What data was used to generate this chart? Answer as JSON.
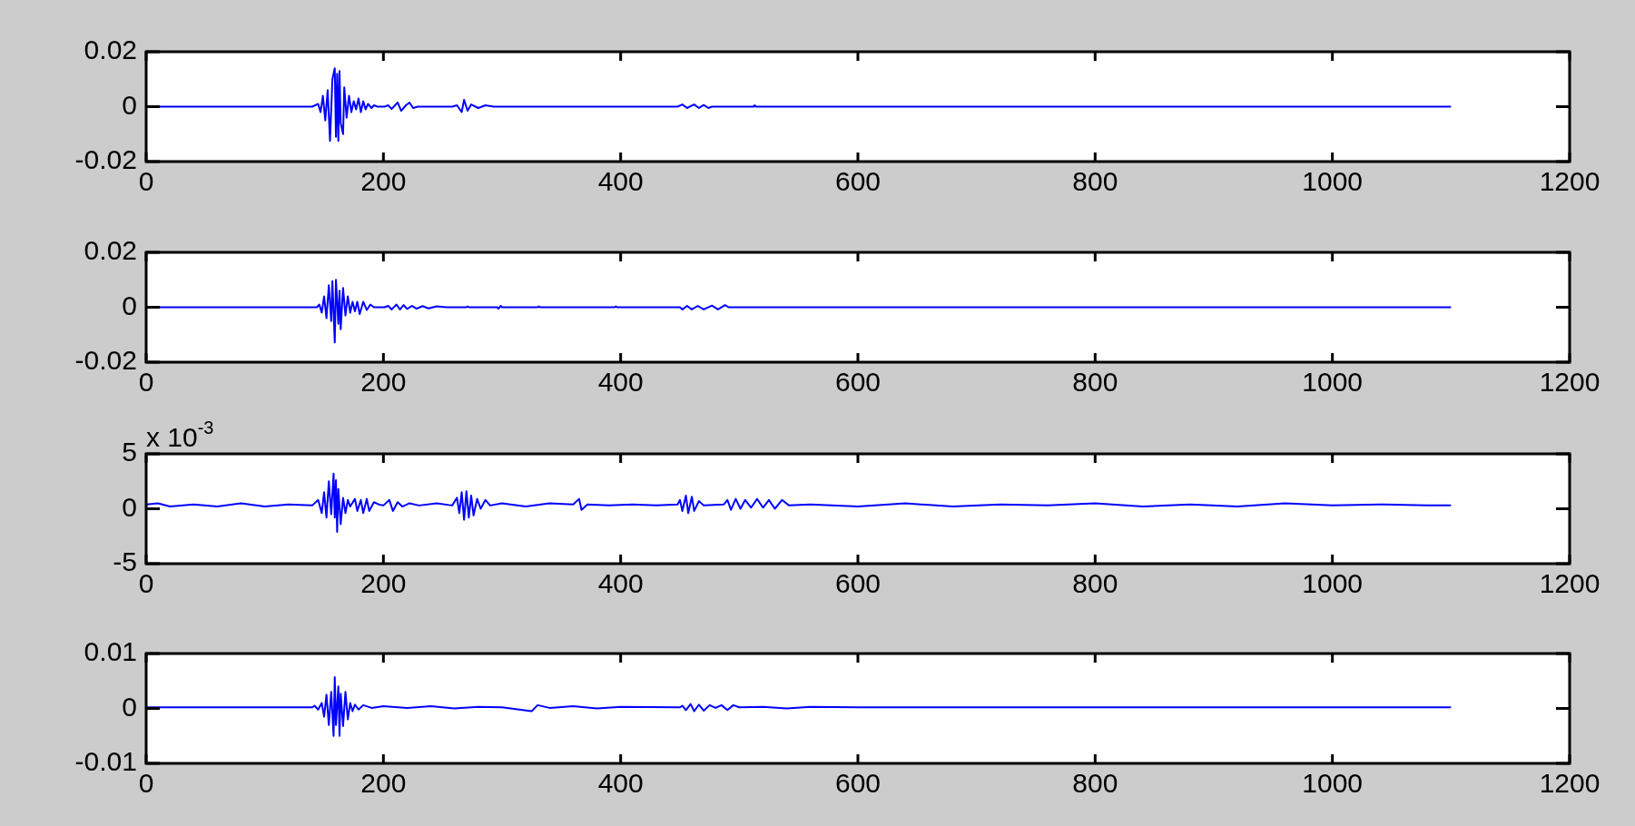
{
  "chart_data": [
    {
      "type": "line",
      "color": "#0000ff",
      "xlim": [
        0,
        1200
      ],
      "xticks": [
        0,
        200,
        400,
        600,
        800,
        1000,
        1200
      ],
      "ylim": [
        -0.02,
        0.02
      ],
      "yticks": [
        -0.02,
        0,
        0.02
      ],
      "grid": false,
      "legend": false,
      "x": [
        0,
        140,
        145,
        147,
        149,
        151,
        153,
        155,
        157,
        159,
        160,
        161,
        162,
        163,
        164,
        166,
        167,
        169,
        171,
        173,
        175,
        177,
        179,
        181,
        183,
        185,
        187,
        190,
        192,
        195,
        201,
        204,
        207,
        212,
        215,
        219,
        222,
        225,
        229,
        258,
        262,
        266,
        268,
        271,
        274,
        280,
        286,
        293,
        448,
        452,
        456,
        462,
        466,
        470,
        474,
        477,
        512,
        513,
        514,
        1100
      ],
      "values": [
        0,
        0,
        0.001,
        -0.002,
        0.004,
        -0.005,
        0.006,
        -0.0125,
        0.01,
        0.014,
        -0.011,
        0.012,
        -0.0125,
        0.013,
        -0.006,
        -0.01,
        0.007,
        -0.004,
        0.004,
        -0.002,
        0.002,
        -0.001,
        0.003,
        -0.002,
        0.002,
        -0.001,
        0.001,
        -0.0005,
        0.0005,
        0,
        0,
        0.0005,
        -0.0008,
        0.0015,
        -0.0015,
        0.0005,
        0.0015,
        -0.0005,
        0,
        0,
        0.0005,
        -0.002,
        0.0025,
        -0.0015,
        0.0008,
        -0.0005,
        0.0005,
        0,
        0,
        0.0008,
        -0.0005,
        0.0008,
        -0.0005,
        0.0006,
        -0.0005,
        0,
        0,
        0.0005,
        0,
        0
      ]
    },
    {
      "type": "line",
      "color": "#0000ff",
      "xlim": [
        0,
        1200
      ],
      "xticks": [
        0,
        200,
        400,
        600,
        800,
        1000,
        1200
      ],
      "ylim": [
        -0.02,
        0.02
      ],
      "yticks": [
        -0.02,
        0,
        0.02
      ],
      "grid": false,
      "legend": false,
      "x": [
        0,
        144,
        146,
        148,
        150,
        152,
        154,
        156,
        157,
        159,
        160,
        162,
        163,
        164,
        166,
        168,
        170,
        172,
        174,
        176,
        178,
        180,
        183,
        186,
        189,
        192,
        201,
        204,
        207,
        211,
        214,
        217,
        220,
        224,
        228,
        233,
        238,
        245,
        253,
        270,
        271,
        272,
        296,
        297,
        299,
        300,
        330,
        331,
        332,
        395,
        396,
        397,
        450,
        452,
        456,
        460,
        465,
        470,
        477,
        482,
        488,
        491,
        1100
      ],
      "values": [
        0,
        0,
        0.001,
        -0.002,
        0.004,
        -0.004,
        0.008,
        -0.005,
        0.0095,
        -0.0128,
        0.01,
        -0.006,
        0.006,
        -0.008,
        0.007,
        -0.003,
        0.004,
        -0.002,
        0.002,
        -0.0015,
        0.002,
        -0.0025,
        0.002,
        -0.001,
        0.001,
        0,
        0,
        0.0005,
        -0.0008,
        0.001,
        -0.0008,
        0.0008,
        -0.0006,
        0.0005,
        -0.0005,
        0.0004,
        -0.0004,
        0.0003,
        0,
        0,
        0.0003,
        0,
        0,
        -0.0005,
        0.0005,
        0,
        0,
        0.0003,
        0,
        0,
        0.0003,
        0,
        0,
        -0.0008,
        0.0005,
        -0.0008,
        0.0005,
        -0.0008,
        0.0006,
        -0.0008,
        0.0008,
        0,
        0
      ]
    },
    {
      "type": "line",
      "color": "#0000ff",
      "xlim": [
        0,
        1200
      ],
      "xticks": [
        0,
        200,
        400,
        600,
        800,
        1000,
        1200
      ],
      "ylim": [
        -5,
        5
      ],
      "yticks": [
        -5,
        0,
        5
      ],
      "grid": false,
      "legend": false,
      "annotations": [
        "x 10$^{-3}$"
      ],
      "x": [
        0,
        10,
        20,
        40,
        60,
        80,
        100,
        120,
        140,
        145,
        148,
        150,
        152,
        154,
        156,
        158,
        159,
        160,
        161,
        162,
        164,
        166,
        168,
        170,
        172,
        176,
        178,
        181,
        183,
        186,
        188,
        192,
        196,
        200,
        205,
        208,
        212,
        216,
        222,
        230,
        245,
        258,
        262,
        264,
        266,
        268,
        270,
        272,
        274,
        276,
        279,
        282,
        286,
        290,
        300,
        320,
        340,
        360,
        365,
        367,
        372,
        390,
        410,
        430,
        448,
        450,
        452,
        455,
        457,
        460,
        462,
        466,
        470,
        487,
        490,
        493,
        497,
        501,
        505,
        510,
        515,
        520,
        525,
        530,
        536,
        542,
        560,
        600,
        640,
        680,
        720,
        760,
        800,
        840,
        880,
        920,
        960,
        1000,
        1040,
        1080,
        1100
      ],
      "values": [
        0.4,
        0.5,
        0.2,
        0.4,
        0.2,
        0.5,
        0.2,
        0.4,
        0.3,
        0.8,
        -0.4,
        1.5,
        -0.8,
        2.5,
        -0.5,
        3.2,
        -0.8,
        2.6,
        -2.1,
        1.8,
        -1.4,
        1,
        -0.4,
        0.8,
        0.2,
        0.9,
        -0.2,
        0.8,
        -0.4,
        0.9,
        -0.2,
        0.6,
        0.4,
        0.3,
        0.8,
        -0.2,
        0.6,
        0.2,
        0.5,
        0.3,
        0.5,
        0.3,
        1,
        -0.4,
        1.5,
        -1,
        1.6,
        -0.8,
        1.2,
        -0.6,
        0.9,
        0,
        0.8,
        0.3,
        0.5,
        0.2,
        0.5,
        0.4,
        0.9,
        -0.1,
        0.4,
        0.3,
        0.4,
        0.3,
        0.4,
        0.8,
        -0.2,
        1.2,
        -0.4,
        1.1,
        -0.2,
        0.7,
        0.3,
        0.4,
        0.8,
        -0.1,
        0.9,
        0,
        0.8,
        0.1,
        0.9,
        0.1,
        0.8,
        0,
        0.8,
        0.3,
        0.4,
        0.2,
        0.5,
        0.2,
        0.4,
        0.3,
        0.5,
        0.2,
        0.4,
        0.2,
        0.5,
        0.3,
        0.4,
        0.3,
        0.3
      ]
    },
    {
      "type": "line",
      "color": "#0000ff",
      "xlim": [
        0,
        1200
      ],
      "xticks": [
        0,
        200,
        400,
        600,
        800,
        1000,
        1200
      ],
      "ylim": [
        -0.01,
        0.01
      ],
      "yticks": [
        -0.01,
        0,
        0.01
      ],
      "grid": false,
      "legend": false,
      "x": [
        0,
        60,
        100,
        140,
        142,
        145,
        148,
        150,
        152,
        154,
        156,
        158,
        159,
        160,
        162,
        163,
        164,
        166,
        168,
        170,
        172,
        174,
        176,
        179,
        183,
        190,
        200,
        220,
        240,
        260,
        280,
        300,
        325,
        330,
        340,
        360,
        380,
        400,
        450,
        452,
        455,
        459,
        462,
        466,
        470,
        475,
        480,
        485,
        490,
        495,
        500,
        520,
        540,
        560,
        600,
        700,
        800,
        900,
        1000,
        1100
      ],
      "values": [
        0.0002,
        0.0002,
        0.0002,
        0.0002,
        0.0005,
        -0.0002,
        0.001,
        -0.0015,
        0.0025,
        -0.003,
        0.003,
        -0.005,
        0.0057,
        -0.003,
        0.004,
        -0.005,
        0.0027,
        -0.0032,
        0.003,
        -0.002,
        0.001,
        -0.0005,
        0.0007,
        -0.0002,
        0.0006,
        0.0001,
        0.0004,
        0.0001,
        0.0004,
        0,
        0.0003,
        0.0002,
        -0.0005,
        0.0006,
        0.0001,
        0.0004,
        0,
        0.0003,
        0.0002,
        0.0005,
        -0.0003,
        0.0008,
        -0.0005,
        0.0007,
        -0.0004,
        0.0006,
        0.0001,
        0.0006,
        -0.0003,
        0.0006,
        0.0002,
        0.0003,
        0,
        0.0003,
        0.0002,
        0.0002,
        0.0002,
        0.0002,
        0.0002,
        0.0002
      ]
    }
  ]
}
